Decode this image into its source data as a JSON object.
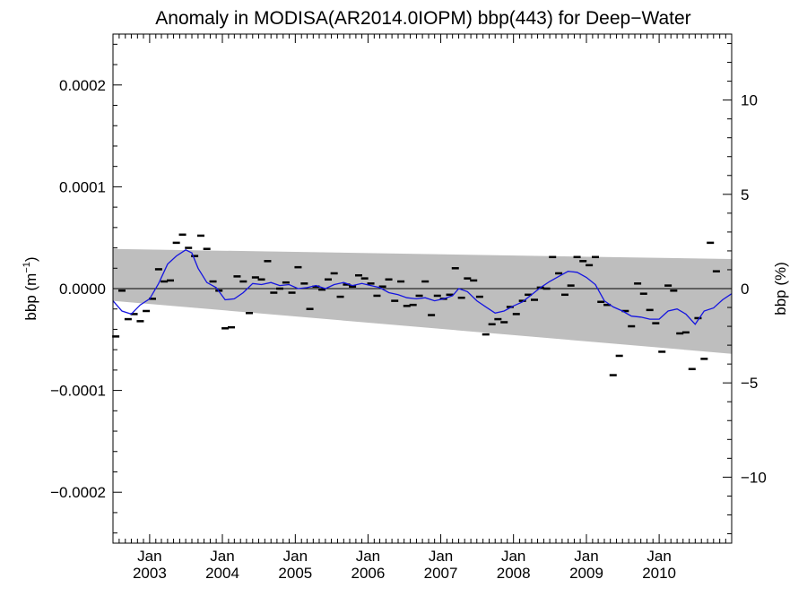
{
  "chart_data": {
    "type": "scatter",
    "title": "Anomaly in MODISA(AR2014.0IOPM) bbp(443) for Deep−Water",
    "ylabel_left": {
      "base": "bbp (m",
      "superscript": "−1",
      "suffix": ")"
    },
    "ylabel_right": "bbp (%)",
    "ylim": [
      -0.00025,
      0.00025
    ],
    "ylim_right": [
      -13.5,
      13.5
    ],
    "xlim": [
      "2002-07-01",
      "2010-12-31"
    ],
    "left_ticks": [
      {
        "value": 0.0002,
        "label": "0.0002"
      },
      {
        "value": 0.0001,
        "label": "0.0001"
      },
      {
        "value": 0.0,
        "label": "0.0000"
      },
      {
        "value": -0.0001,
        "label": "−0.0001"
      },
      {
        "value": -0.0002,
        "label": "−0.0002"
      }
    ],
    "right_ticks": [
      {
        "value": 10,
        "label": "10"
      },
      {
        "value": 5,
        "label": "5"
      },
      {
        "value": 0,
        "label": "0"
      },
      {
        "value": -5,
        "label": "−5"
      },
      {
        "value": -10,
        "label": "−10"
      }
    ],
    "x_ticks": [
      {
        "date": "2003-01-01",
        "month": "Jan",
        "year": "2003"
      },
      {
        "date": "2004-01-01",
        "month": "Jan",
        "year": "2004"
      },
      {
        "date": "2005-01-01",
        "month": "Jan",
        "year": "2005"
      },
      {
        "date": "2006-01-01",
        "month": "Jan",
        "year": "2006"
      },
      {
        "date": "2007-01-01",
        "month": "Jan",
        "year": "2007"
      },
      {
        "date": "2008-01-01",
        "month": "Jan",
        "year": "2008"
      },
      {
        "date": "2009-01-01",
        "month": "Jan",
        "year": "2009"
      },
      {
        "date": "2010-01-01",
        "month": "Jan",
        "year": "2010"
      }
    ],
    "uncertainty_band": {
      "start": {
        "date": "2002-07-01",
        "upper": 3.9e-05,
        "lower": -1.2e-05
      },
      "end": {
        "date": "2010-12-31",
        "upper": 2.9e-05,
        "lower": -6.4e-05
      }
    },
    "series": [
      {
        "kind": "monthly-anomaly-marks",
        "color": "#000000",
        "points": [
          [
            "2002-07-15",
            -4.7e-05
          ],
          [
            "2002-08-15",
            -2e-06
          ],
          [
            "2002-09-15",
            -3e-05
          ],
          [
            "2002-10-15",
            -2.5e-05
          ],
          [
            "2002-11-15",
            -3.2e-05
          ],
          [
            "2002-12-15",
            -2.2e-05
          ],
          [
            "2003-01-15",
            -1e-05
          ],
          [
            "2003-02-15",
            1.9e-05
          ],
          [
            "2003-03-15",
            7e-06
          ],
          [
            "2003-04-15",
            8e-06
          ],
          [
            "2003-05-15",
            4.5e-05
          ],
          [
            "2003-06-15",
            5.3e-05
          ],
          [
            "2003-07-15",
            4e-05
          ],
          [
            "2003-08-15",
            3.2e-05
          ],
          [
            "2003-09-15",
            5.2e-05
          ],
          [
            "2003-10-15",
            3.9e-05
          ],
          [
            "2003-11-15",
            7e-06
          ],
          [
            "2003-12-15",
            -2e-06
          ],
          [
            "2004-01-15",
            -3.9e-05
          ],
          [
            "2004-02-15",
            -3.8e-05
          ],
          [
            "2004-03-15",
            1.2e-05
          ],
          [
            "2004-04-15",
            7e-06
          ],
          [
            "2004-05-15",
            -2.4e-05
          ],
          [
            "2004-06-15",
            1.1e-05
          ],
          [
            "2004-07-15",
            9e-06
          ],
          [
            "2004-08-15",
            2.7e-05
          ],
          [
            "2004-09-15",
            -4e-06
          ],
          [
            "2004-10-15",
            0.0
          ],
          [
            "2004-11-15",
            6e-06
          ],
          [
            "2004-12-15",
            -4e-06
          ],
          [
            "2005-01-15",
            2.1e-05
          ],
          [
            "2005-02-15",
            5e-06
          ],
          [
            "2005-03-15",
            -2e-05
          ],
          [
            "2005-04-15",
            2e-06
          ],
          [
            "2005-05-15",
            -1e-06
          ],
          [
            "2005-06-15",
            9e-06
          ],
          [
            "2005-07-15",
            1.5e-05
          ],
          [
            "2005-08-15",
            -8e-06
          ],
          [
            "2005-09-15",
            4e-06
          ],
          [
            "2005-10-15",
            2e-06
          ],
          [
            "2005-11-15",
            1.3e-05
          ],
          [
            "2005-12-15",
            1e-05
          ],
          [
            "2006-01-15",
            5e-06
          ],
          [
            "2006-02-15",
            -7e-06
          ],
          [
            "2006-03-15",
            2e-06
          ],
          [
            "2006-04-15",
            9e-06
          ],
          [
            "2006-05-15",
            -1.2e-05
          ],
          [
            "2006-06-15",
            7e-06
          ],
          [
            "2006-07-15",
            -1.7e-05
          ],
          [
            "2006-08-15",
            -1.6e-05
          ],
          [
            "2006-09-15",
            -7e-06
          ],
          [
            "2006-10-15",
            7e-06
          ],
          [
            "2006-11-15",
            -2.6e-05
          ],
          [
            "2006-12-15",
            -7e-06
          ],
          [
            "2007-01-15",
            -1e-05
          ],
          [
            "2007-02-15",
            -6e-06
          ],
          [
            "2007-03-15",
            2e-05
          ],
          [
            "2007-04-15",
            -9e-06
          ],
          [
            "2007-05-15",
            1e-05
          ],
          [
            "2007-06-15",
            8e-06
          ],
          [
            "2007-07-15",
            -8e-06
          ],
          [
            "2007-08-15",
            -4.5e-05
          ],
          [
            "2007-09-15",
            -3.5e-05
          ],
          [
            "2007-10-15",
            -3e-05
          ],
          [
            "2007-11-15",
            -3.3e-05
          ],
          [
            "2007-12-15",
            -1.8e-05
          ],
          [
            "2008-01-15",
            -2.5e-05
          ],
          [
            "2008-02-15",
            -1.2e-05
          ],
          [
            "2008-03-15",
            -6e-06
          ],
          [
            "2008-04-15",
            -1.1e-05
          ],
          [
            "2008-05-15",
            1e-06
          ],
          [
            "2008-06-15",
            0.0
          ],
          [
            "2008-07-15",
            3.1e-05
          ],
          [
            "2008-08-15",
            1.5e-05
          ],
          [
            "2008-09-15",
            -6e-06
          ],
          [
            "2008-10-15",
            3e-06
          ],
          [
            "2008-11-15",
            3.1e-05
          ],
          [
            "2008-12-15",
            2.7e-05
          ],
          [
            "2009-01-15",
            2.3e-05
          ],
          [
            "2009-02-15",
            3.1e-05
          ],
          [
            "2009-03-15",
            -1.3e-05
          ],
          [
            "2009-04-15",
            -1.6e-05
          ],
          [
            "2009-05-15",
            -8.5e-05
          ],
          [
            "2009-06-15",
            -6.6e-05
          ],
          [
            "2009-07-15",
            -2.2e-05
          ],
          [
            "2009-08-15",
            -3.7e-05
          ],
          [
            "2009-09-15",
            5e-06
          ],
          [
            "2009-10-15",
            -5e-06
          ],
          [
            "2009-11-15",
            -2.1e-05
          ],
          [
            "2009-12-15",
            -3.4e-05
          ],
          [
            "2010-01-15",
            -6.2e-05
          ],
          [
            "2010-02-15",
            3e-06
          ],
          [
            "2010-03-15",
            -2e-06
          ],
          [
            "2010-04-15",
            -4.4e-05
          ],
          [
            "2010-05-15",
            -4.3e-05
          ],
          [
            "2010-06-15",
            -7.9e-05
          ],
          [
            "2010-07-15",
            -2.9e-05
          ],
          [
            "2010-08-15",
            -6.9e-05
          ],
          [
            "2010-09-15",
            4.5e-05
          ],
          [
            "2010-10-15",
            1.7e-05
          ]
        ]
      },
      {
        "kind": "running-mean-line",
        "color": "#1515e0",
        "points": [
          [
            "2002-07-01",
            -1.2e-05
          ],
          [
            "2002-08-15",
            -2.2e-05
          ],
          [
            "2002-10-01",
            -2.5e-05
          ],
          [
            "2002-11-15",
            -1.6e-05
          ],
          [
            "2003-01-01",
            -1e-05
          ],
          [
            "2003-02-15",
            5e-06
          ],
          [
            "2003-04-01",
            2.4e-05
          ],
          [
            "2003-05-15",
            3.2e-05
          ],
          [
            "2003-07-01",
            3.8e-05
          ],
          [
            "2003-08-01",
            3.5e-05
          ],
          [
            "2003-09-01",
            2e-05
          ],
          [
            "2003-10-15",
            6e-06
          ],
          [
            "2003-12-01",
            1e-06
          ],
          [
            "2004-01-15",
            -1.1e-05
          ],
          [
            "2004-03-01",
            -1e-05
          ],
          [
            "2004-04-15",
            -4e-06
          ],
          [
            "2004-06-01",
            5e-06
          ],
          [
            "2004-07-15",
            4e-06
          ],
          [
            "2004-09-01",
            6e-06
          ],
          [
            "2004-10-15",
            3e-06
          ],
          [
            "2004-12-01",
            4e-06
          ],
          [
            "2005-01-15",
            0.0
          ],
          [
            "2005-03-01",
            1e-06
          ],
          [
            "2005-04-15",
            3e-06
          ],
          [
            "2005-06-01",
            0.0
          ],
          [
            "2005-07-15",
            4e-06
          ],
          [
            "2005-09-01",
            6e-06
          ],
          [
            "2005-10-15",
            3e-06
          ],
          [
            "2005-12-01",
            5e-06
          ],
          [
            "2006-01-15",
            3e-06
          ],
          [
            "2006-03-01",
            1e-06
          ],
          [
            "2006-04-15",
            -4e-06
          ],
          [
            "2006-06-01",
            -6e-06
          ],
          [
            "2006-07-15",
            -9e-06
          ],
          [
            "2006-09-01",
            -1e-05
          ],
          [
            "2006-10-15",
            -9e-06
          ],
          [
            "2006-12-01",
            -1.2e-05
          ],
          [
            "2007-01-15",
            -1e-05
          ],
          [
            "2007-03-01",
            -7e-06
          ],
          [
            "2007-04-01",
            0.0
          ],
          [
            "2007-05-15",
            -3e-06
          ],
          [
            "2007-07-01",
            -1.2e-05
          ],
          [
            "2007-08-15",
            -1.8e-05
          ],
          [
            "2007-10-01",
            -2.4e-05
          ],
          [
            "2007-11-15",
            -2.2e-05
          ],
          [
            "2008-01-01",
            -1.7e-05
          ],
          [
            "2008-02-15",
            -1.3e-05
          ],
          [
            "2008-04-01",
            -6e-06
          ],
          [
            "2008-05-15",
            1e-06
          ],
          [
            "2008-07-01",
            7e-06
          ],
          [
            "2008-08-15",
            1.2e-05
          ],
          [
            "2008-10-01",
            1.7e-05
          ],
          [
            "2008-11-15",
            1.6e-05
          ],
          [
            "2009-01-01",
            1.1e-05
          ],
          [
            "2009-02-15",
            4e-06
          ],
          [
            "2009-04-01",
            -1.2e-05
          ],
          [
            "2009-05-15",
            -1.8e-05
          ],
          [
            "2009-07-01",
            -2.2e-05
          ],
          [
            "2009-08-15",
            -2.7e-05
          ],
          [
            "2009-10-01",
            -2.8e-05
          ],
          [
            "2009-11-15",
            -3e-05
          ],
          [
            "2010-01-01",
            -3e-05
          ],
          [
            "2010-02-15",
            -2.2e-05
          ],
          [
            "2010-04-01",
            -2e-05
          ],
          [
            "2010-05-15",
            -2.5e-05
          ],
          [
            "2010-07-01",
            -3.5e-05
          ],
          [
            "2010-08-15",
            -2.2e-05
          ],
          [
            "2010-10-01",
            -1.9e-05
          ],
          [
            "2010-11-15",
            -1.1e-05
          ],
          [
            "2010-12-31",
            -5e-06
          ]
        ]
      }
    ],
    "grid": false,
    "zero_line": true
  }
}
